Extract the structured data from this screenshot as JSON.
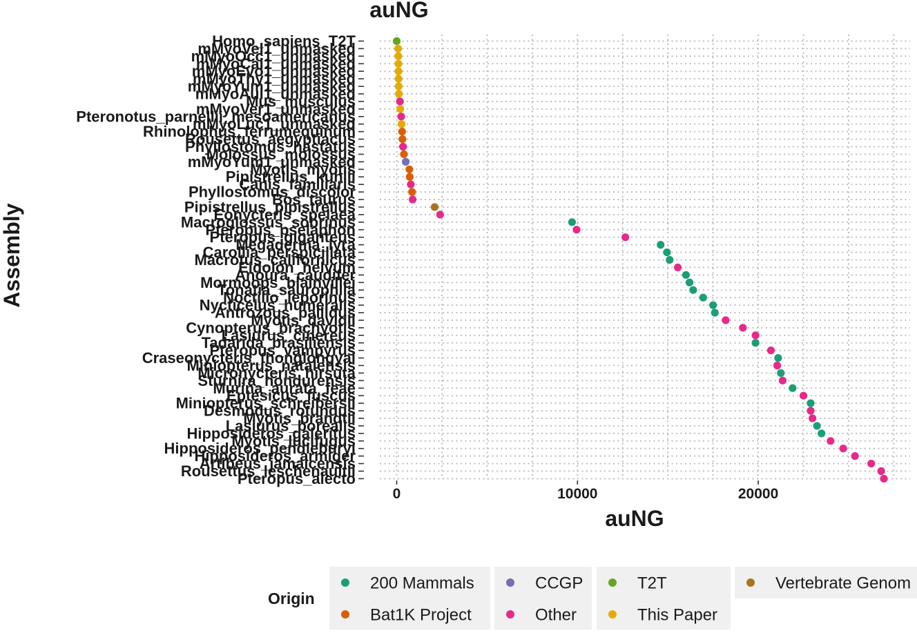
{
  "chart_data": {
    "type": "scatter",
    "title": "auNG",
    "xlabel": "auNG",
    "ylabel": "Assembly",
    "xlim": [
      -1700,
      28400
    ],
    "xticks": [
      0,
      10000,
      20000
    ],
    "xtick_labels": [
      "0",
      "10000",
      "20000"
    ],
    "grid": "dotted",
    "legend": {
      "title": "Origin",
      "position": "bottom",
      "entries": [
        {
          "name": "200 Mammals",
          "color": "#1B9E77"
        },
        {
          "name": "Bat1K Project",
          "color": "#D95F02"
        },
        {
          "name": "CCGP",
          "color": "#7570B3"
        },
        {
          "name": "Other",
          "color": "#E7298A"
        },
        {
          "name": "T2T",
          "color": "#66A61E"
        },
        {
          "name": "This Paper",
          "color": "#E6AB02"
        },
        {
          "name": "Vertebrate Genom",
          "color": "#A6761D"
        }
      ]
    },
    "points": [
      {
        "label": "Homo_sapiens_T2T",
        "value": 0,
        "origin": "T2T"
      },
      {
        "label": "mMyoVel1_unmasked",
        "value": 80,
        "origin": "This Paper"
      },
      {
        "label": "mMyoOcc1_unmasked",
        "value": 90,
        "origin": "This Paper"
      },
      {
        "label": "mMyoCai1_unmasked",
        "value": 95,
        "origin": "This Paper"
      },
      {
        "label": "mMyoEvo1_unmasked",
        "value": 100,
        "origin": "This Paper"
      },
      {
        "label": "mMyoThy1_unmasked",
        "value": 105,
        "origin": "This Paper"
      },
      {
        "label": "mMyoYum1_unmasked",
        "value": 110,
        "origin": "This Paper"
      },
      {
        "label": "mMyoAui1_unmasked",
        "value": 120,
        "origin": "This Paper"
      },
      {
        "label": "Mus_musculus",
        "value": 180,
        "origin": "Other"
      },
      {
        "label": "mMyoVer1_unmasked",
        "value": 200,
        "origin": "This Paper"
      },
      {
        "label": "Pteronotus_parnellii_mesoamericanus",
        "value": 250,
        "origin": "Other"
      },
      {
        "label": "mMyoLuc1_unmasked",
        "value": 270,
        "origin": "This Paper"
      },
      {
        "label": "Rhinolophus_ferrumequinum",
        "value": 300,
        "origin": "Bat1K Project"
      },
      {
        "label": "Rousettus_aegyptiacus",
        "value": 320,
        "origin": "Bat1K Project"
      },
      {
        "label": "Phyllostomus_hastatus",
        "value": 350,
        "origin": "Other"
      },
      {
        "label": "Molossus_molossus",
        "value": 400,
        "origin": "Bat1K Project"
      },
      {
        "label": "mMyoYum1_unmasked",
        "value": 500,
        "origin": "CCGP"
      },
      {
        "label": "Myotis_myotis",
        "value": 700,
        "origin": "Bat1K Project"
      },
      {
        "label": "Pipistrellus_kuhlii",
        "value": 720,
        "origin": "Bat1K Project"
      },
      {
        "label": "Canis_familiaris",
        "value": 780,
        "origin": "Other"
      },
      {
        "label": "Phyllostomus_discolor",
        "value": 850,
        "origin": "Bat1K Project"
      },
      {
        "label": "Bos_taurus",
        "value": 880,
        "origin": "Other"
      },
      {
        "label": "Pipistrellus_pipistrellus",
        "value": 2100,
        "origin": "Vertebrate Genom"
      },
      {
        "label": "Eonycteris_spelaea",
        "value": 2400,
        "origin": "Other"
      },
      {
        "label": "Macroglossus_sobrinus",
        "value": 9700,
        "origin": "200 Mammals"
      },
      {
        "label": "Pteropus_pselaphon",
        "value": 9950,
        "origin": "Other"
      },
      {
        "label": "Pteropus_giganteus",
        "value": 12650,
        "origin": "Other"
      },
      {
        "label": "Megaderma_lyra",
        "value": 14600,
        "origin": "200 Mammals"
      },
      {
        "label": "Carollia_perspicillata",
        "value": 14950,
        "origin": "200 Mammals"
      },
      {
        "label": "Macrotus_californicus",
        "value": 15100,
        "origin": "200 Mammals"
      },
      {
        "label": "Eidolon_helvum",
        "value": 15550,
        "origin": "Other"
      },
      {
        "label": "Anoura_caudifer",
        "value": 16000,
        "origin": "200 Mammals"
      },
      {
        "label": "Mormoops_blainvillei",
        "value": 16200,
        "origin": "200 Mammals"
      },
      {
        "label": "Tonatia_saurophila",
        "value": 16400,
        "origin": "200 Mammals"
      },
      {
        "label": "Noctilio_leporinus",
        "value": 16950,
        "origin": "200 Mammals"
      },
      {
        "label": "Nycticeius_humeralis",
        "value": 17500,
        "origin": "200 Mammals"
      },
      {
        "label": "Antrozous_pallidus",
        "value": 17600,
        "origin": "200 Mammals"
      },
      {
        "label": "Myotis_davidii",
        "value": 18200,
        "origin": "Other"
      },
      {
        "label": "Cynopterus_brachyotis",
        "value": 19150,
        "origin": "Other"
      },
      {
        "label": "Lasiurus_cinereus",
        "value": 19850,
        "origin": "Other"
      },
      {
        "label": "Tadarida_brasiliensis",
        "value": 19850,
        "origin": "200 Mammals"
      },
      {
        "label": "Pteropus_vampyrus",
        "value": 20700,
        "origin": "Other"
      },
      {
        "label": "Craseonycteris_thonglongyai",
        "value": 21100,
        "origin": "200 Mammals"
      },
      {
        "label": "Miniopterus_natalensis",
        "value": 21050,
        "origin": "Other"
      },
      {
        "label": "Micronycteris_hirsuta",
        "value": 21250,
        "origin": "200 Mammals"
      },
      {
        "label": "Sturnira_hondurensis",
        "value": 21350,
        "origin": "Other"
      },
      {
        "label": "Murina_aurata_feae",
        "value": 21900,
        "origin": "200 Mammals"
      },
      {
        "label": "Eptesicus_fuscus",
        "value": 22500,
        "origin": "Other"
      },
      {
        "label": "Miniopterus_schreibersii",
        "value": 22900,
        "origin": "200 Mammals"
      },
      {
        "label": "Desmodus_rotundus",
        "value": 22900,
        "origin": "Other"
      },
      {
        "label": "Myotis_brandtii",
        "value": 23000,
        "origin": "Other"
      },
      {
        "label": "Lasiurus_borealis",
        "value": 23250,
        "origin": "200 Mammals"
      },
      {
        "label": "Hipposideros_galeritus",
        "value": 23500,
        "origin": "200 Mammals"
      },
      {
        "label": "Myotis_lucifugus",
        "value": 24000,
        "origin": "Other"
      },
      {
        "label": "Hipposideros_pendleburyi",
        "value": 24700,
        "origin": "Other"
      },
      {
        "label": "Hipposideros_armiger",
        "value": 25350,
        "origin": "Other"
      },
      {
        "label": "Artibeus_jamaicensis",
        "value": 26250,
        "origin": "Other"
      },
      {
        "label": "Rousettus_leschenaultii",
        "value": 26800,
        "origin": "Other"
      },
      {
        "label": "Pteropus_alecto",
        "value": 26950,
        "origin": "Other"
      }
    ]
  }
}
